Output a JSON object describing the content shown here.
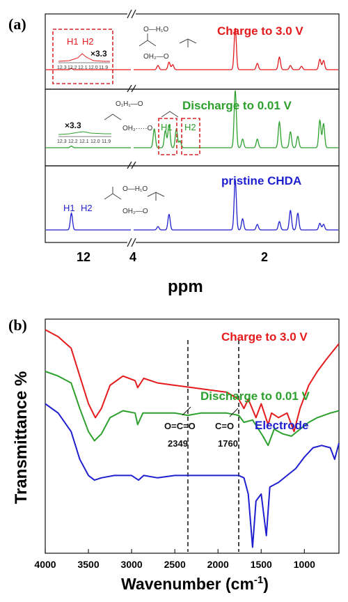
{
  "chart_data": [
    {
      "type": "line",
      "panel_label": "(a)",
      "xlabel": "ppm",
      "ylabel": "",
      "x_tick_labels": [
        "12",
        "4",
        "2"
      ],
      "series": [
        {
          "name": "Charge to 3.0 V",
          "color": "#e41a1c",
          "peaks": [
            {
              "ppm": 12.2,
              "height": 0.03
            },
            {
              "ppm": 3.65,
              "height": 0.1
            },
            {
              "ppm": 3.5,
              "height": 0.18
            },
            {
              "ppm": 3.45,
              "height": 0.12
            },
            {
              "ppm": 2.6,
              "height": 1.0
            },
            {
              "ppm": 2.3,
              "height": 0.15
            },
            {
              "ppm": 2.0,
              "height": 0.3
            },
            {
              "ppm": 1.85,
              "height": 0.1
            },
            {
              "ppm": 1.7,
              "height": 0.08
            },
            {
              "ppm": 1.45,
              "height": 0.25
            },
            {
              "ppm": 1.4,
              "height": 0.22
            }
          ]
        },
        {
          "name": "Discharge to 0.01 V",
          "color": "#2ca02c",
          "peaks": [
            {
              "ppm": 12.2,
              "height": 0.03
            },
            {
              "ppm": 3.7,
              "height": 0.33
            },
            {
              "ppm": 3.55,
              "height": 0.3
            },
            {
              "ppm": 3.5,
              "height": 0.4
            },
            {
              "ppm": 3.4,
              "height": 0.33
            },
            {
              "ppm": 3.35,
              "height": 0.12
            },
            {
              "ppm": 2.6,
              "height": 1.0
            },
            {
              "ppm": 2.5,
              "height": 0.15
            },
            {
              "ppm": 2.3,
              "height": 0.15
            },
            {
              "ppm": 2.0,
              "height": 0.45
            },
            {
              "ppm": 1.85,
              "height": 0.28
            },
            {
              "ppm": 1.75,
              "height": 0.2
            },
            {
              "ppm": 1.45,
              "height": 0.48
            },
            {
              "ppm": 1.4,
              "height": 0.42
            }
          ]
        },
        {
          "name": "pristine CHDA",
          "color": "#1f1fd0",
          "peaks": [
            {
              "ppm": 12.2,
              "height": 0.3
            },
            {
              "ppm": 3.65,
              "height": 0.06
            },
            {
              "ppm": 3.5,
              "height": 0.28
            },
            {
              "ppm": 2.6,
              "height": 0.9
            },
            {
              "ppm": 2.5,
              "height": 0.2
            },
            {
              "ppm": 2.3,
              "height": 0.1
            },
            {
              "ppm": 2.0,
              "height": 0.15
            },
            {
              "ppm": 1.85,
              "height": 0.35
            },
            {
              "ppm": 1.75,
              "height": 0.3
            },
            {
              "ppm": 1.45,
              "height": 0.12
            },
            {
              "ppm": 1.4,
              "height": 0.1
            }
          ]
        }
      ],
      "annotations": {
        "h_labels": [
          "H1",
          "H2"
        ],
        "magnification": "×3.3",
        "inset_ticks": [
          "12.3",
          "12.2",
          "12.1",
          "12.0",
          "11.9"
        ],
        "molecule_atoms": {
          "a_top": "O—H₁O",
          "a_bottom": "OH₂—O",
          "b_top": "O₁H₁—O",
          "b_bottom": "OH₂·····O"
        }
      }
    },
    {
      "type": "line",
      "panel_label": "(b)",
      "xlabel": "Wavenumber (cm",
      "xlabel_sup": "-1",
      "xlabel_close": ")",
      "ylabel": "Transmittance %",
      "xlim": [
        4000,
        600
      ],
      "x_ticks": [
        4000,
        3500,
        3000,
        2500,
        2000,
        1500,
        1000
      ],
      "series": [
        {
          "name": "Charge to 3.0 V",
          "color": "#e41a1c",
          "points": [
            [
              4000,
              0.96
            ],
            [
              3850,
              0.93
            ],
            [
              3700,
              0.88
            ],
            [
              3600,
              0.76
            ],
            [
              3500,
              0.64
            ],
            [
              3420,
              0.58
            ],
            [
              3350,
              0.62
            ],
            [
              3250,
              0.72
            ],
            [
              3100,
              0.76
            ],
            [
              2960,
              0.74
            ],
            [
              2930,
              0.71
            ],
            [
              2860,
              0.75
            ],
            [
              2700,
              0.73
            ],
            [
              2500,
              0.72
            ],
            [
              2300,
              0.71
            ],
            [
              2100,
              0.7
            ],
            [
              1900,
              0.69
            ],
            [
              1760,
              0.66
            ],
            [
              1700,
              0.62
            ],
            [
              1650,
              0.66
            ],
            [
              1560,
              0.58
            ],
            [
              1500,
              0.64
            ],
            [
              1420,
              0.55
            ],
            [
              1380,
              0.6
            ],
            [
              1300,
              0.58
            ],
            [
              1200,
              0.6
            ],
            [
              1120,
              0.52
            ],
            [
              1050,
              0.62
            ],
            [
              950,
              0.72
            ],
            [
              850,
              0.78
            ],
            [
              750,
              0.83
            ],
            [
              600,
              0.9
            ]
          ]
        },
        {
          "name": "Discharge to 0.01 V",
          "color": "#2ca02c",
          "points": [
            [
              4000,
              0.78
            ],
            [
              3850,
              0.76
            ],
            [
              3700,
              0.73
            ],
            [
              3600,
              0.62
            ],
            [
              3500,
              0.52
            ],
            [
              3430,
              0.48
            ],
            [
              3350,
              0.51
            ],
            [
              3250,
              0.58
            ],
            [
              3100,
              0.61
            ],
            [
              2960,
              0.6
            ],
            [
              2930,
              0.55
            ],
            [
              2870,
              0.6
            ],
            [
              2700,
              0.6
            ],
            [
              2500,
              0.6
            ],
            [
              2349,
              0.59
            ],
            [
              2200,
              0.6
            ],
            [
              1900,
              0.6
            ],
            [
              1760,
              0.59
            ],
            [
              1700,
              0.56
            ],
            [
              1600,
              0.57
            ],
            [
              1480,
              0.5
            ],
            [
              1420,
              0.46
            ],
            [
              1350,
              0.53
            ],
            [
              1250,
              0.51
            ],
            [
              1150,
              0.5
            ],
            [
              1050,
              0.53
            ],
            [
              950,
              0.56
            ],
            [
              850,
              0.58
            ],
            [
              700,
              0.6
            ],
            [
              600,
              0.61
            ]
          ]
        },
        {
          "name": "Electrode",
          "color": "#1f1fd0",
          "points": [
            [
              4000,
              0.64
            ],
            [
              3850,
              0.6
            ],
            [
              3700,
              0.52
            ],
            [
              3600,
              0.4
            ],
            [
              3500,
              0.33
            ],
            [
              3430,
              0.31
            ],
            [
              3350,
              0.32
            ],
            [
              3200,
              0.33
            ],
            [
              3000,
              0.33
            ],
            [
              2920,
              0.31
            ],
            [
              2860,
              0.33
            ],
            [
              2700,
              0.32
            ],
            [
              2500,
              0.33
            ],
            [
              2300,
              0.33
            ],
            [
              2100,
              0.33
            ],
            [
              1900,
              0.33
            ],
            [
              1760,
              0.33
            ],
            [
              1700,
              0.32
            ],
            [
              1650,
              0.25
            ],
            [
              1600,
              0.02
            ],
            [
              1560,
              0.22
            ],
            [
              1500,
              0.25
            ],
            [
              1440,
              0.07
            ],
            [
              1400,
              0.28
            ],
            [
              1300,
              0.3
            ],
            [
              1200,
              0.33
            ],
            [
              1100,
              0.36
            ],
            [
              1000,
              0.41
            ],
            [
              900,
              0.45
            ],
            [
              800,
              0.46
            ],
            [
              700,
              0.45
            ],
            [
              650,
              0.4
            ],
            [
              600,
              0.47
            ]
          ]
        }
      ],
      "annotations": [
        {
          "label": "O=C=O",
          "value": "2349",
          "x": 2349
        },
        {
          "label": "C=O",
          "value": "1760",
          "x": 1760
        }
      ]
    }
  ]
}
